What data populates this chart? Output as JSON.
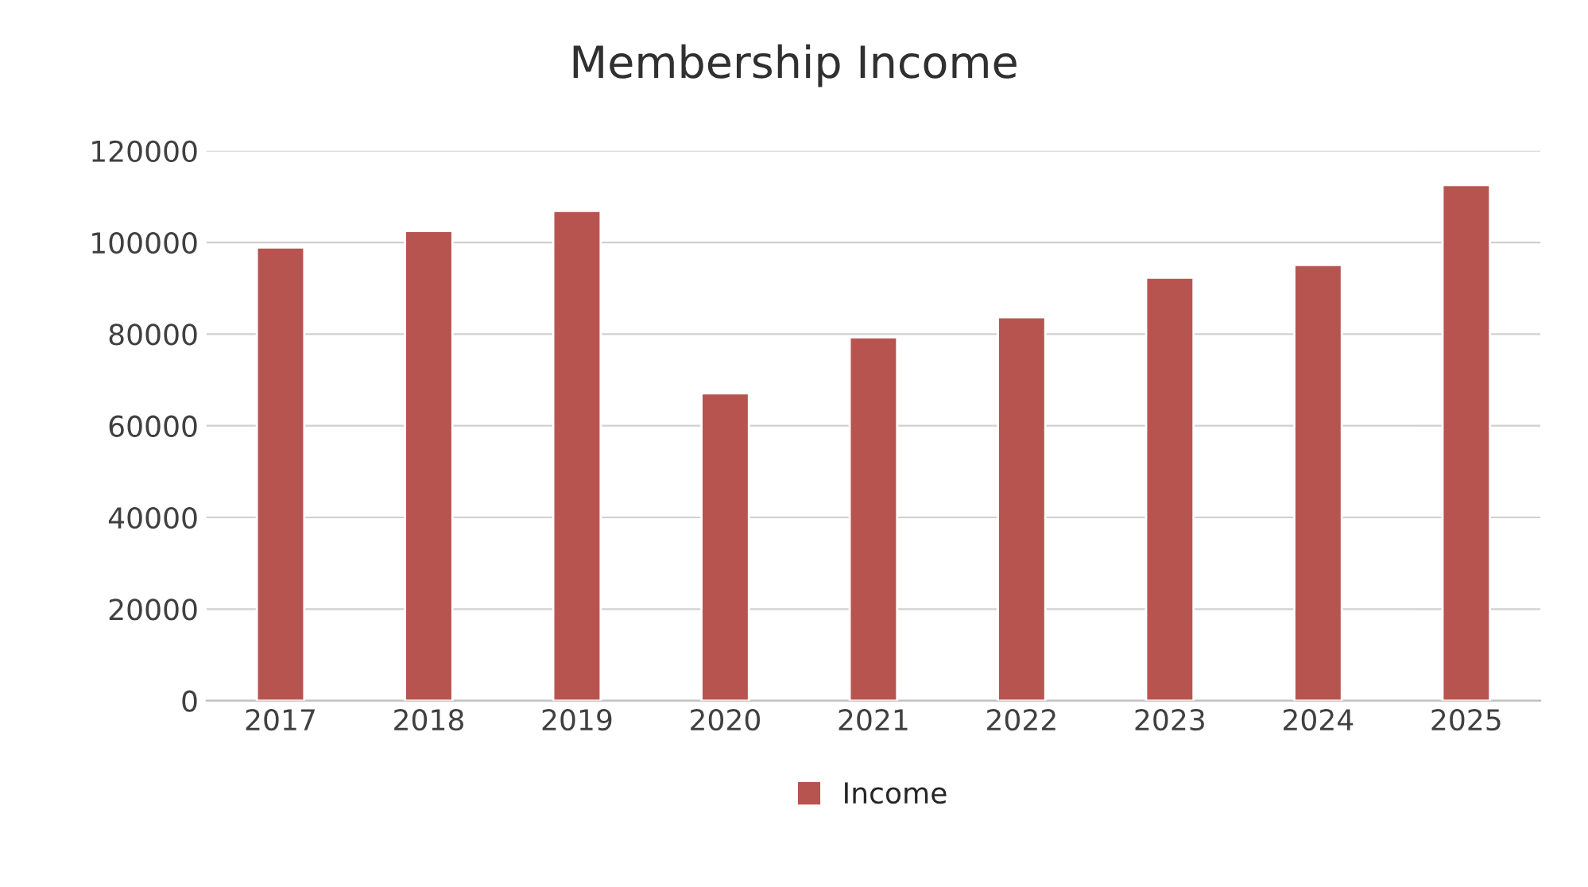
{
  "chart_data": {
    "type": "bar",
    "title": "Membership Income",
    "categories": [
      "2017",
      "2018",
      "2019",
      "2020",
      "2021",
      "2022",
      "2023",
      "2024",
      "2025"
    ],
    "series": [
      {
        "name": "Income",
        "color": "#b85450",
        "values": [
          98900,
          102500,
          106900,
          67100,
          79300,
          83700,
          92300,
          95100,
          112500
        ]
      }
    ],
    "ylim": [
      0,
      120000
    ],
    "yticks": [
      0,
      20000,
      40000,
      60000,
      80000,
      100000,
      120000
    ],
    "grid": "y",
    "legend": "bottom"
  }
}
